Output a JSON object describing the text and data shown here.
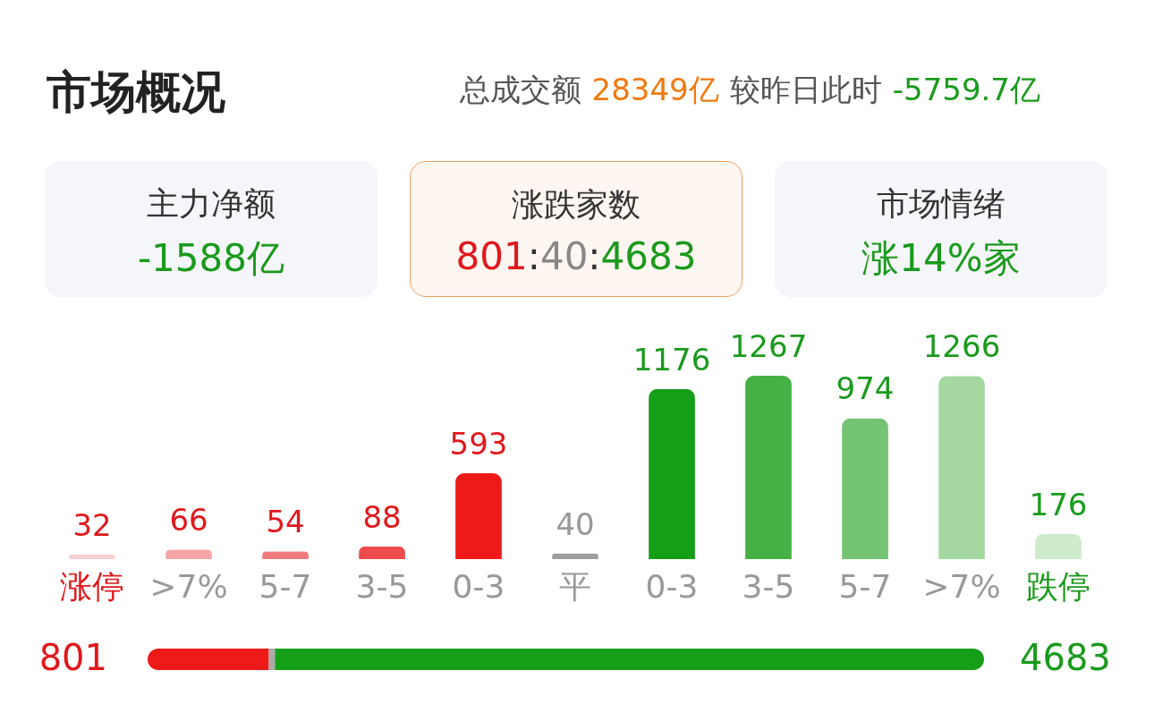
{
  "chart_data": [
    {
      "type": "bar",
      "title": "市场概况",
      "annotations": [
        "总成交额",
        "28349亿",
        "较昨日此时",
        "-5759.7亿",
        "主力净额",
        "-1588亿",
        "涨跌家数",
        "801:40:4683",
        "市场情绪",
        "涨14%家"
      ],
      "categories": [
        "涨停",
        ">7%",
        "5-7",
        "3-5",
        "0-3",
        "平",
        "0-3",
        "3-5",
        "5-7",
        ">7%",
        "跌停"
      ],
      "values": [
        32,
        66,
        54,
        88,
        593,
        40,
        1176,
        1267,
        974,
        1266,
        176
      ],
      "colors": [
        "#f9d0d3",
        "#f4a3a6",
        "#f07a7d",
        "#ee4b4e",
        "#ee1a1a",
        "#9e9e9e",
        "#159f18",
        "#44b045",
        "#74c474",
        "#a4d8a0",
        "#cdeacb"
      ],
      "data_labels": true
    },
    {
      "type": "bar",
      "orientation": "horizontal",
      "stacked": true,
      "categories": [
        null
      ],
      "series": [
        {
          "color": "#ee1a1a",
          "values": [
            801
          ],
          "value_labels": [
            "801"
          ]
        },
        {
          "color": "#aaaaaa",
          "values": [
            40
          ],
          "value_labels": [
            null
          ]
        },
        {
          "color": "#159f18",
          "values": [
            4683
          ],
          "value_labels": [
            "4683"
          ]
        }
      ]
    }
  ]
}
